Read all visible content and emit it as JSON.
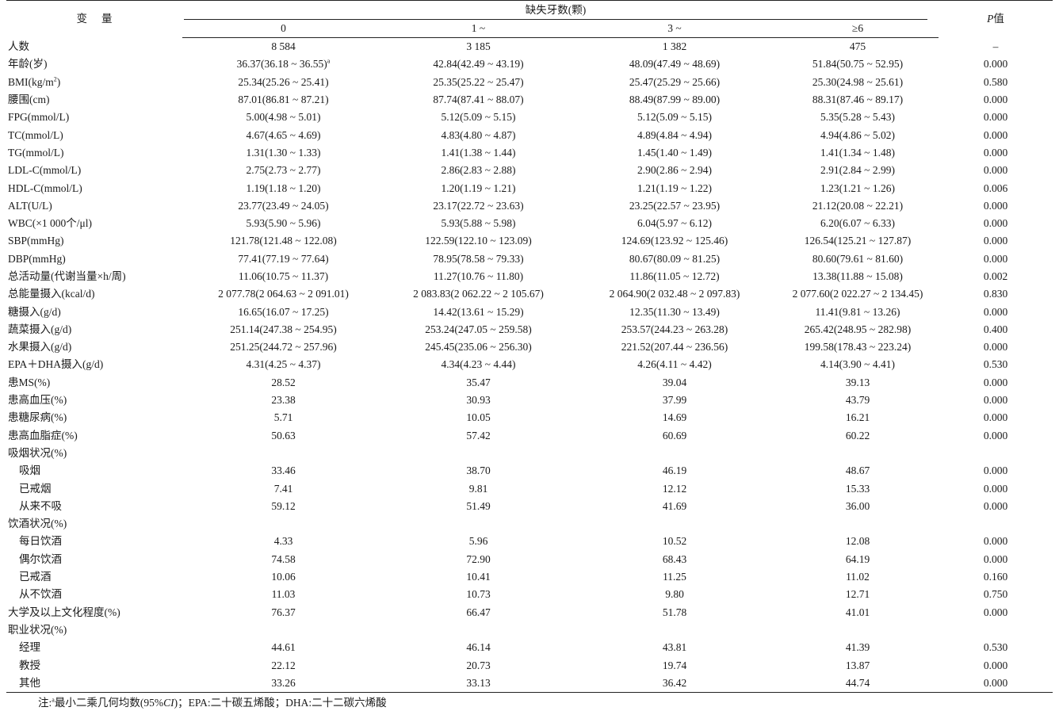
{
  "header": {
    "variable": "变量",
    "group": "缺失牙数(颗)",
    "p_prefix": "P",
    "p_suffix": "值",
    "groups": [
      "0",
      "1 ~",
      "3 ~",
      "≥6"
    ]
  },
  "rows": [
    {
      "label": "人数",
      "v": [
        "8 584",
        "3 185",
        "1 382",
        "475"
      ],
      "p": "–"
    },
    {
      "label": "年龄(岁)",
      "v": [
        "36.37(36.18 ~ 36.55)",
        "42.84(42.49 ~ 43.19)",
        "48.09(47.49 ~ 48.69)",
        "51.84(50.75 ~ 52.95)"
      ],
      "p": "0.000",
      "note_mark": "a"
    },
    {
      "label": "BMI(kg/m",
      "label_sup": "2",
      "label_after": ")",
      "v": [
        "25.34(25.26 ~ 25.41)",
        "25.35(25.22 ~ 25.47)",
        "25.47(25.29 ~ 25.66)",
        "25.30(24.98 ~ 25.61)"
      ],
      "p": "0.580"
    },
    {
      "label": "腰围(cm)",
      "v": [
        "87.01(86.81 ~ 87.21)",
        "87.74(87.41 ~ 88.07)",
        "88.49(87.99 ~ 89.00)",
        "88.31(87.46 ~ 89.17)"
      ],
      "p": "0.000"
    },
    {
      "label": "FPG(mmol/L)",
      "v": [
        "5.00(4.98 ~ 5.01)",
        "5.12(5.09 ~ 5.15)",
        "5.12(5.09 ~ 5.15)",
        "5.35(5.28 ~ 5.43)"
      ],
      "p": "0.000"
    },
    {
      "label": "TC(mmol/L)",
      "v": [
        "4.67(4.65 ~ 4.69)",
        "4.83(4.80 ~ 4.87)",
        "4.89(4.84 ~ 4.94)",
        "4.94(4.86 ~ 5.02)"
      ],
      "p": "0.000"
    },
    {
      "label": "TG(mmol/L)",
      "v": [
        "1.31(1.30 ~ 1.33)",
        "1.41(1.38 ~ 1.44)",
        "1.45(1.40 ~ 1.49)",
        "1.41(1.34 ~ 1.48)"
      ],
      "p": "0.000"
    },
    {
      "label": "LDL-C(mmol/L)",
      "v": [
        "2.75(2.73 ~ 2.77)",
        "2.86(2.83 ~ 2.88)",
        "2.90(2.86 ~ 2.94)",
        "2.91(2.84 ~ 2.99)"
      ],
      "p": "0.000"
    },
    {
      "label": "HDL-C(mmol/L)",
      "v": [
        "1.19(1.18 ~ 1.20)",
        "1.20(1.19 ~ 1.21)",
        "1.21(1.19 ~ 1.22)",
        "1.23(1.21 ~ 1.26)"
      ],
      "p": "0.006"
    },
    {
      "label": "ALT(U/L)",
      "v": [
        "23.77(23.49 ~ 24.05)",
        "23.17(22.72 ~ 23.63)",
        "23.25(22.57 ~ 23.95)",
        "21.12(20.08 ~ 22.21)"
      ],
      "p": "0.000"
    },
    {
      "label": "WBC(×1 000个/μl)",
      "v": [
        "5.93(5.90 ~ 5.96)",
        "5.93(5.88 ~ 5.98)",
        "6.04(5.97 ~ 6.12)",
        "6.20(6.07 ~ 6.33)"
      ],
      "p": "0.000"
    },
    {
      "label": "SBP(mmHg)",
      "v": [
        "121.78(121.48 ~ 122.08)",
        "122.59(122.10 ~ 123.09)",
        "124.69(123.92 ~ 125.46)",
        "126.54(125.21 ~ 127.87)"
      ],
      "p": "0.000"
    },
    {
      "label": "DBP(mmHg)",
      "v": [
        "77.41(77.19 ~ 77.64)",
        "78.95(78.58 ~ 79.33)",
        "80.67(80.09 ~ 81.25)",
        "80.60(79.61 ~ 81.60)"
      ],
      "p": "0.000"
    },
    {
      "label": "总活动量(代谢当量×h/周)",
      "v": [
        "11.06(10.75 ~ 11.37)",
        "11.27(10.76 ~ 11.80)",
        "11.86(11.05 ~ 12.72)",
        "13.38(11.88 ~ 15.08)"
      ],
      "p": "0.002"
    },
    {
      "label": "总能量摄入(kcal/d)",
      "v": [
        "2 077.78(2 064.63 ~ 2 091.01)",
        "2 083.83(2 062.22 ~ 2 105.67)",
        "2 064.90(2 032.48 ~ 2 097.83)",
        "2 077.60(2 022.27 ~ 2 134.45)"
      ],
      "p": "0.830"
    },
    {
      "label": "糖摄入(g/d)",
      "v": [
        "16.65(16.07 ~ 17.25)",
        "14.42(13.61 ~ 15.29)",
        "12.35(11.30 ~ 13.49)",
        "11.41(9.81 ~ 13.26)"
      ],
      "p": "0.000"
    },
    {
      "label": "蔬菜摄入(g/d)",
      "v": [
        "251.14(247.38 ~ 254.95)",
        "253.24(247.05 ~ 259.58)",
        "253.57(244.23 ~ 263.28)",
        "265.42(248.95 ~ 282.98)"
      ],
      "p": "0.400"
    },
    {
      "label": "水果摄入(g/d)",
      "v": [
        "251.25(244.72 ~ 257.96)",
        "245.45(235.06 ~ 256.30)",
        "221.52(207.44 ~ 236.56)",
        "199.58(178.43 ~ 223.24)"
      ],
      "p": "0.000"
    },
    {
      "label": "EPA＋DHA摄入(g/d)",
      "v": [
        "4.31(4.25 ~ 4.37)",
        "4.34(4.23 ~ 4.44)",
        "4.26(4.11 ~ 4.42)",
        "4.14(3.90 ~ 4.41)"
      ],
      "p": "0.530"
    },
    {
      "label": "患MS(%)",
      "v": [
        "28.52",
        "35.47",
        "39.04",
        "39.13"
      ],
      "p": "0.000"
    },
    {
      "label": "患高血压(%)",
      "v": [
        "23.38",
        "30.93",
        "37.99",
        "43.79"
      ],
      "p": "0.000"
    },
    {
      "label": "患糖尿病(%)",
      "v": [
        "5.71",
        "10.05",
        "14.69",
        "16.21"
      ],
      "p": "0.000"
    },
    {
      "label": "患高血脂症(%)",
      "v": [
        "50.63",
        "57.42",
        "60.69",
        "60.22"
      ],
      "p": "0.000"
    },
    {
      "label": "吸烟状况(%)",
      "v": [
        "",
        "",
        "",
        ""
      ],
      "p": ""
    },
    {
      "label": "吸烟",
      "indent": true,
      "v": [
        "33.46",
        "38.70",
        "46.19",
        "48.67"
      ],
      "p": "0.000"
    },
    {
      "label": "已戒烟",
      "indent": true,
      "v": [
        "7.41",
        "9.81",
        "12.12",
        "15.33"
      ],
      "p": "0.000"
    },
    {
      "label": "从来不吸",
      "indent": true,
      "v": [
        "59.12",
        "51.49",
        "41.69",
        "36.00"
      ],
      "p": "0.000"
    },
    {
      "label": "饮酒状况(%)",
      "v": [
        "",
        "",
        "",
        ""
      ],
      "p": ""
    },
    {
      "label": "每日饮酒",
      "indent": true,
      "v": [
        "4.33",
        "5.96",
        "10.52",
        "12.08"
      ],
      "p": "0.000"
    },
    {
      "label": "偶尔饮酒",
      "indent": true,
      "v": [
        "74.58",
        "72.90",
        "68.43",
        "64.19"
      ],
      "p": "0.000"
    },
    {
      "label": "已戒酒",
      "indent": true,
      "v": [
        "10.06",
        "10.41",
        "11.25",
        "11.02"
      ],
      "p": "0.160"
    },
    {
      "label": "从不饮酒",
      "indent": true,
      "v": [
        "11.03",
        "10.73",
        "9.80",
        "12.71"
      ],
      "p": "0.750"
    },
    {
      "label": "大学及以上文化程度(%)",
      "v": [
        "76.37",
        "66.47",
        "51.78",
        "41.01"
      ],
      "p": "0.000"
    },
    {
      "label": "职业状况(%)",
      "v": [
        "",
        "",
        "",
        ""
      ],
      "p": ""
    },
    {
      "label": "经理",
      "indent": true,
      "v": [
        "44.61",
        "46.14",
        "43.81",
        "41.39"
      ],
      "p": "0.530"
    },
    {
      "label": "教授",
      "indent": true,
      "v": [
        "22.12",
        "20.73",
        "19.74",
        "13.87"
      ],
      "p": "0.000"
    },
    {
      "label": "其他",
      "indent": true,
      "v": [
        "33.26",
        "33.13",
        "36.42",
        "44.74"
      ],
      "p": "0.000"
    }
  ],
  "footnote": {
    "prefix": "注:",
    "mark": "a",
    "text1": "最小二乘几何均数(95%",
    "ci": "CI",
    "text2": ")；EPA:二十碳五烯酸；DHA:二十二碳六烯酸"
  }
}
